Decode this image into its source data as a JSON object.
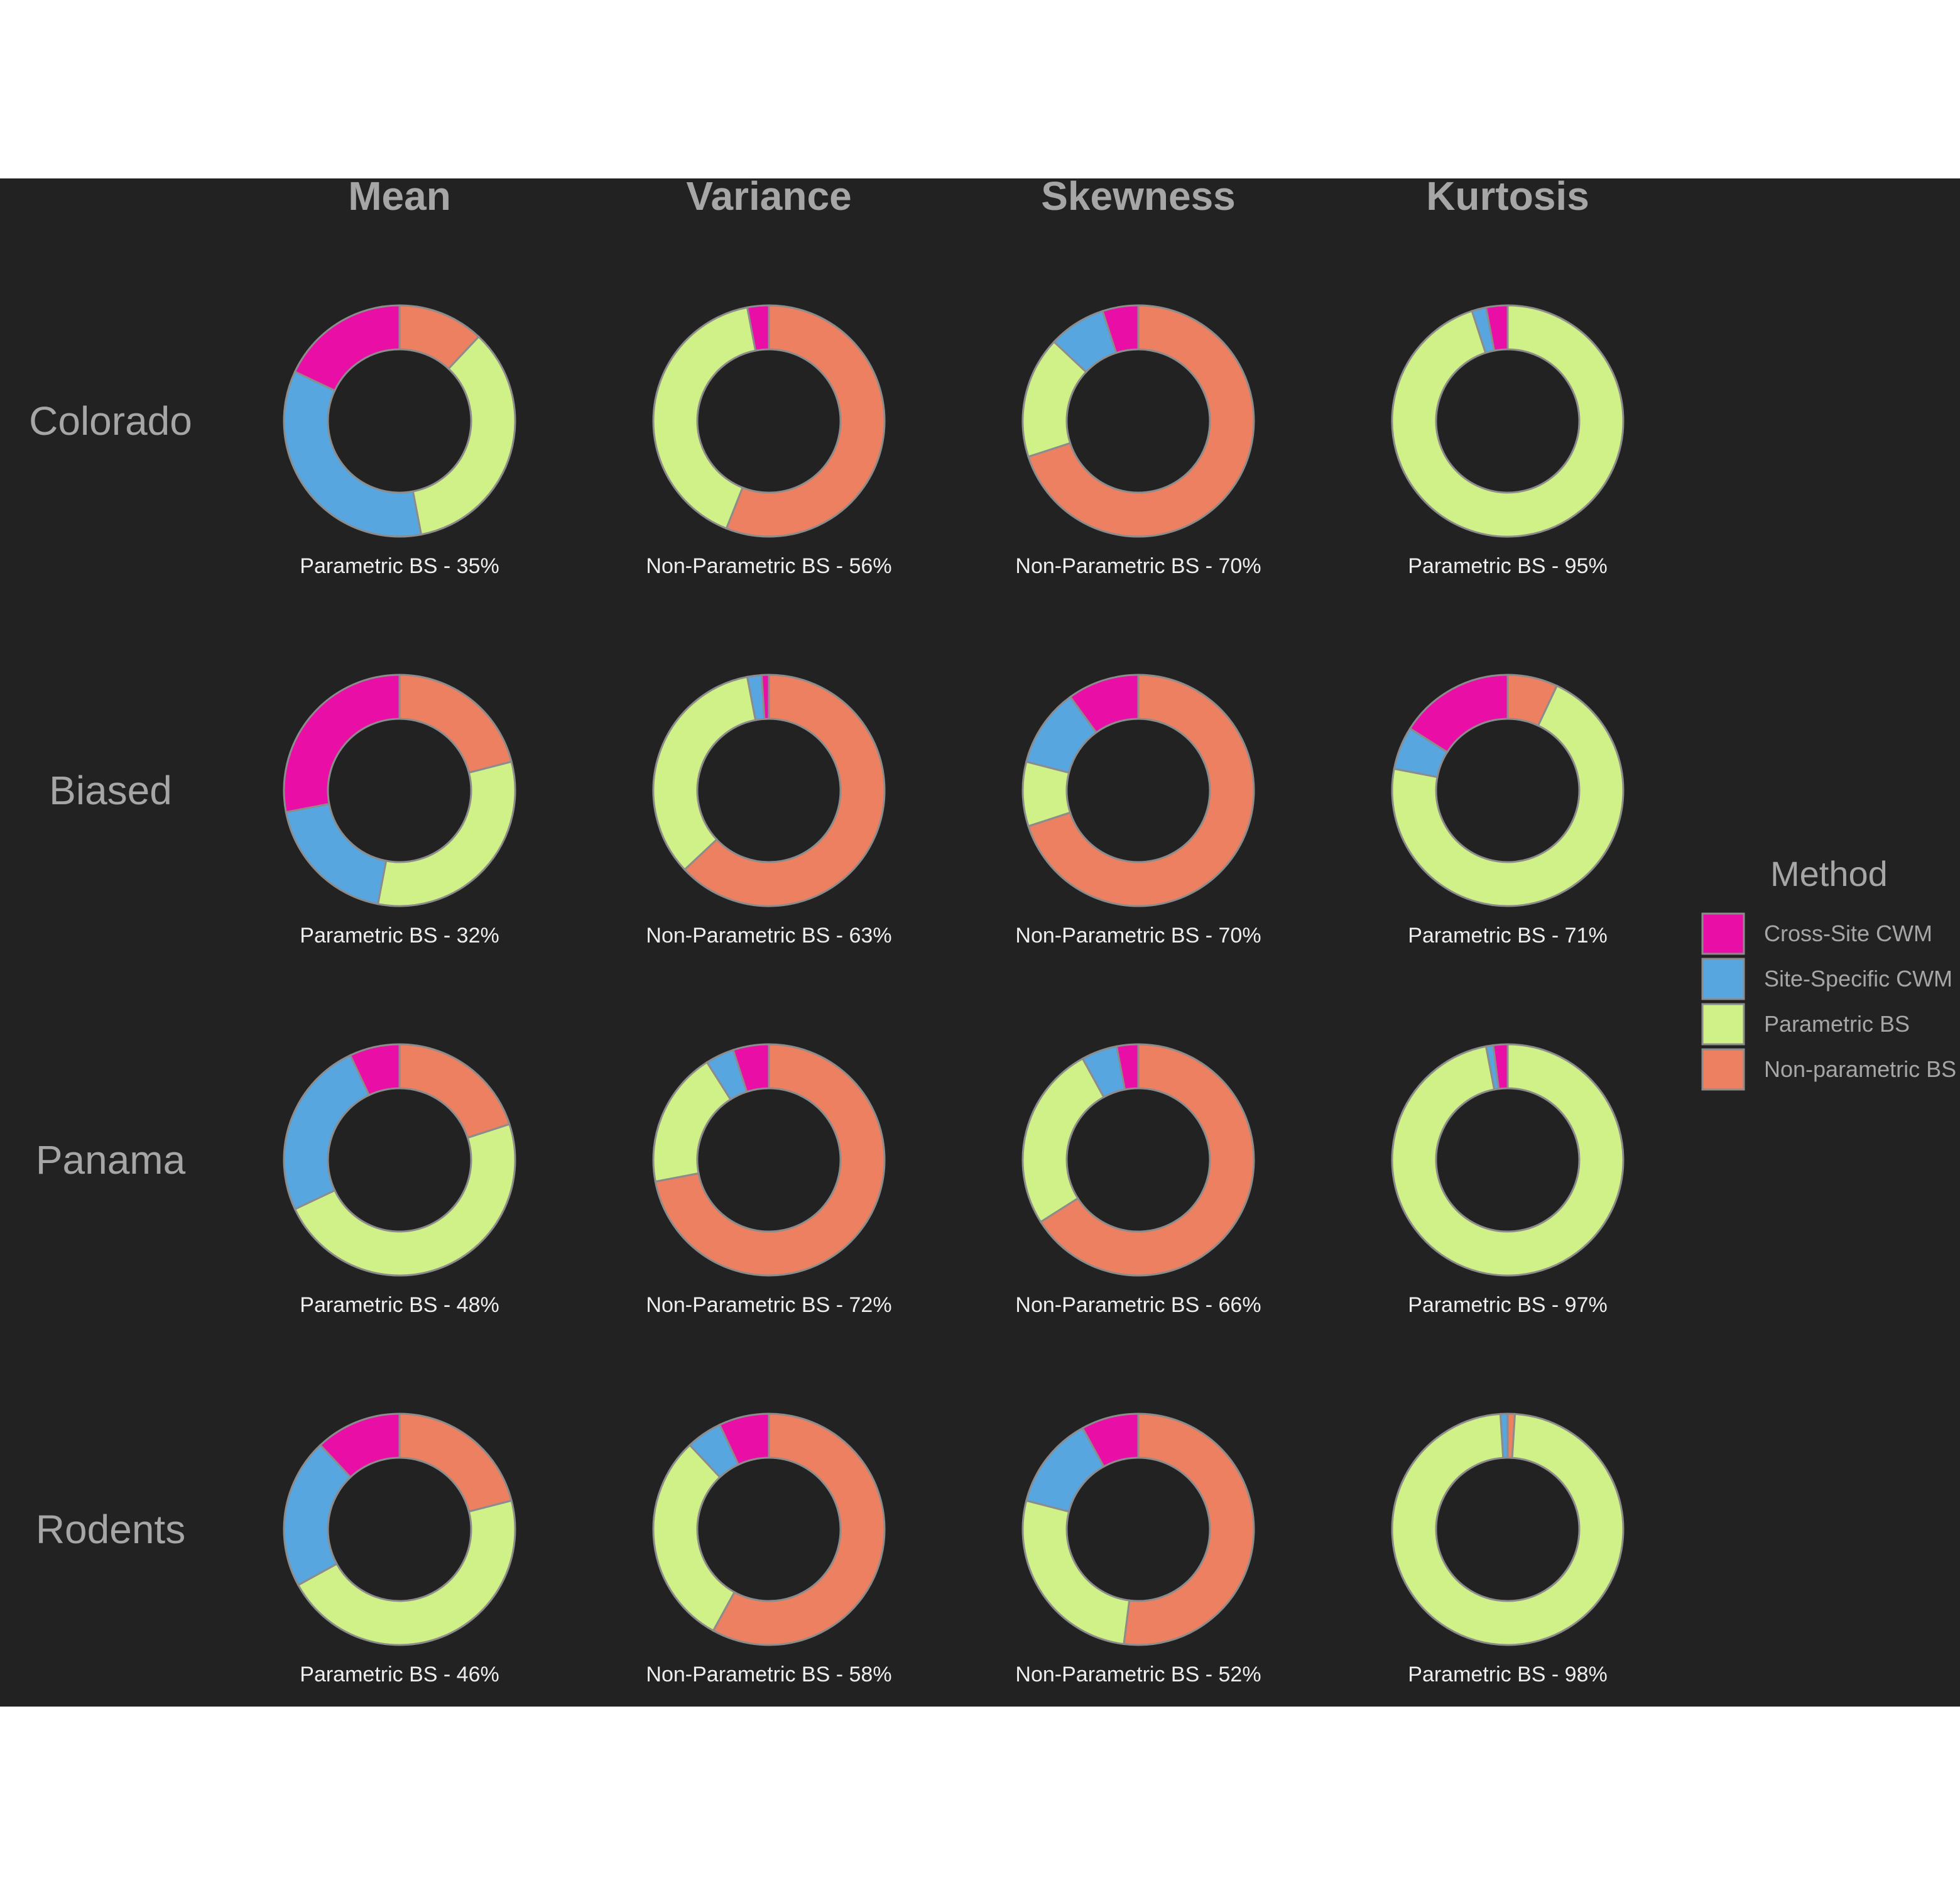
{
  "chart_data": {
    "type": "donut-grid",
    "columns": [
      "Mean",
      "Variance",
      "Skewness",
      "Kurtosis"
    ],
    "rows": [
      "Colorado",
      "Biased",
      "Panama",
      "Rodents"
    ],
    "legend": {
      "title": "Method",
      "entries": [
        {
          "name": "Cross-Site CWM",
          "color": "#e80ea6"
        },
        {
          "name": "Site-Specific CWM",
          "color": "#57a6e0"
        },
        {
          "name": "Parametric BS",
          "color": "#d0f088"
        },
        {
          "name": "Non-parametric BS",
          "color": "#ec8060"
        }
      ]
    },
    "slice_order": [
      "Non-parametric BS",
      "Parametric BS",
      "Site-Specific CWM",
      "Cross-Site CWM"
    ],
    "cells": [
      {
        "row": "Colorado",
        "column": "Mean",
        "label": "Parametric BS - 35%",
        "values": [
          0.12,
          0.35,
          0.35,
          0.18
        ]
      },
      {
        "row": "Colorado",
        "column": "Variance",
        "label": "Non-Parametric BS - 56%",
        "values": [
          0.56,
          0.41,
          0.0,
          0.03
        ]
      },
      {
        "row": "Colorado",
        "column": "Skewness",
        "label": "Non-Parametric BS - 70%",
        "values": [
          0.7,
          0.17,
          0.08,
          0.05
        ]
      },
      {
        "row": "Colorado",
        "column": "Kurtosis",
        "label": "Parametric BS - 95%",
        "values": [
          0.0,
          0.95,
          0.02,
          0.03
        ]
      },
      {
        "row": "Biased",
        "column": "Mean",
        "label": "Parametric BS - 32%",
        "values": [
          0.21,
          0.32,
          0.19,
          0.28
        ]
      },
      {
        "row": "Biased",
        "column": "Variance",
        "label": "Non-Parametric BS - 63%",
        "values": [
          0.63,
          0.34,
          0.02,
          0.01
        ]
      },
      {
        "row": "Biased",
        "column": "Skewness",
        "label": "Non-Parametric BS - 70%",
        "values": [
          0.7,
          0.09,
          0.11,
          0.1
        ]
      },
      {
        "row": "Biased",
        "column": "Kurtosis",
        "label": "Parametric BS - 71%",
        "values": [
          0.07,
          0.71,
          0.06,
          0.16
        ]
      },
      {
        "row": "Panama",
        "column": "Mean",
        "label": "Parametric BS - 48%",
        "values": [
          0.2,
          0.48,
          0.25,
          0.07
        ]
      },
      {
        "row": "Panama",
        "column": "Variance",
        "label": "Non-Parametric BS - 72%",
        "values": [
          0.72,
          0.19,
          0.04,
          0.05
        ]
      },
      {
        "row": "Panama",
        "column": "Skewness",
        "label": "Non-Parametric BS - 66%",
        "values": [
          0.66,
          0.26,
          0.05,
          0.03
        ]
      },
      {
        "row": "Panama",
        "column": "Kurtosis",
        "label": "Parametric BS - 97%",
        "values": [
          0.0,
          0.97,
          0.01,
          0.02
        ]
      },
      {
        "row": "Rodents",
        "column": "Mean",
        "label": "Parametric BS - 46%",
        "values": [
          0.21,
          0.46,
          0.21,
          0.12
        ]
      },
      {
        "row": "Rodents",
        "column": "Variance",
        "label": "Non-Parametric BS - 58%",
        "values": [
          0.58,
          0.3,
          0.05,
          0.07
        ]
      },
      {
        "row": "Rodents",
        "column": "Skewness",
        "label": "Non-Parametric BS - 52%",
        "values": [
          0.52,
          0.27,
          0.13,
          0.08
        ]
      },
      {
        "row": "Rodents",
        "column": "Kurtosis",
        "label": "Parametric BS - 98%",
        "values": [
          0.01,
          0.98,
          0.01,
          0.0
        ]
      }
    ],
    "stroke_color": "#8c8c8c"
  }
}
